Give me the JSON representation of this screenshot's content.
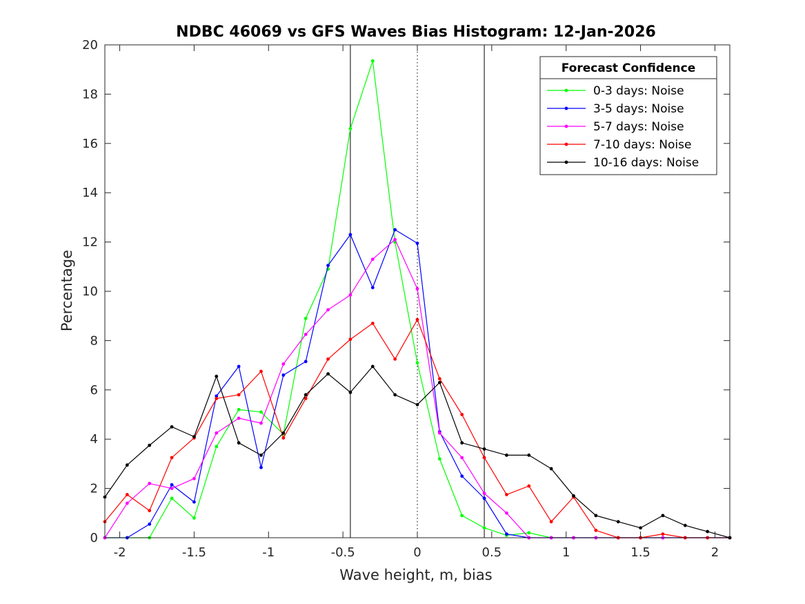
{
  "chart_data": {
    "type": "line",
    "title": "NDBC 46069 vs GFS Waves Bias Histogram: 12-Jan-2026",
    "xlabel": "Wave height, m, bias",
    "ylabel": "Percentage",
    "xlim": [
      -2.1,
      2.1
    ],
    "ylim": [
      0,
      20
    ],
    "xticks": [
      -2,
      -1.5,
      -1,
      -0.5,
      0,
      0.5,
      1,
      1.5,
      2
    ],
    "xtick_labels": [
      "-2",
      "-1.5",
      "-1",
      "-0.5",
      "0",
      "0.5",
      "1",
      "1.5",
      "2"
    ],
    "yticks": [
      0,
      2,
      4,
      6,
      8,
      10,
      12,
      14,
      16,
      18,
      20
    ],
    "ytick_labels": [
      "0",
      "2",
      "4",
      "6",
      "8",
      "10",
      "12",
      "14",
      "16",
      "18",
      "20"
    ],
    "grid": false,
    "vertical_lines": [
      {
        "x": -0.45,
        "style": "solid",
        "color": "#000000"
      },
      {
        "x": 0,
        "style": "dotted",
        "color": "#000000"
      },
      {
        "x": 0.45,
        "style": "solid",
        "color": "#000000"
      }
    ],
    "legend": {
      "title": "Forecast Confidence",
      "position": "top-right"
    },
    "x": [
      -2.1,
      -1.95,
      -1.8,
      -1.65,
      -1.5,
      -1.35,
      -1.2,
      -1.05,
      -0.9,
      -0.75,
      -0.6,
      -0.45,
      -0.3,
      -0.15,
      0,
      0.15,
      0.3,
      0.45,
      0.6,
      0.75,
      0.9,
      1.05,
      1.2,
      1.35,
      1.5,
      1.65,
      1.8,
      1.95,
      2.1
    ],
    "series": [
      {
        "name": "0-3 days: Noise",
        "color": "#00ff00",
        "values": [
          0,
          0,
          0,
          1.6,
          0.8,
          3.7,
          5.2,
          5.1,
          4.2,
          8.9,
          10.9,
          16.6,
          19.35,
          12.0,
          7.1,
          3.2,
          0.9,
          0.4,
          0.1,
          0.2,
          0,
          0,
          0,
          0,
          0,
          0,
          0,
          0,
          0
        ]
      },
      {
        "name": "3-5 days: Noise",
        "color": "#0000ff",
        "values": [
          0,
          0,
          0.55,
          2.15,
          1.45,
          5.75,
          6.95,
          2.85,
          6.6,
          7.15,
          11.05,
          12.3,
          10.15,
          12.5,
          11.95,
          4.3,
          2.5,
          1.6,
          0.15,
          0,
          0,
          0,
          0,
          0,
          0,
          0,
          0,
          0,
          0
        ]
      },
      {
        "name": "5-7 days: Noise",
        "color": "#ff00ff",
        "values": [
          0,
          1.4,
          2.2,
          2.0,
          2.4,
          4.25,
          4.85,
          4.65,
          7.05,
          8.25,
          9.25,
          9.85,
          11.3,
          12.1,
          10.1,
          4.25,
          3.25,
          1.8,
          1.0,
          0,
          0,
          0,
          0,
          0,
          0,
          0,
          0,
          0,
          0
        ]
      },
      {
        "name": "7-10 days: Noise",
        "color": "#ff0000",
        "values": [
          0.65,
          1.75,
          1.1,
          3.25,
          4.05,
          5.65,
          5.8,
          6.75,
          4.05,
          5.65,
          7.25,
          8.05,
          8.7,
          7.25,
          8.85,
          6.45,
          5.0,
          3.25,
          1.75,
          2.1,
          0.65,
          1.65,
          0.3,
          0,
          0,
          0.15,
          0,
          0,
          0
        ]
      },
      {
        "name": "10-16 days: Noise",
        "color": "#000000",
        "values": [
          1.65,
          2.95,
          3.75,
          4.5,
          4.1,
          6.55,
          3.85,
          3.35,
          4.25,
          5.8,
          6.65,
          5.9,
          6.95,
          5.8,
          5.4,
          6.3,
          3.85,
          3.6,
          3.35,
          3.35,
          2.8,
          1.7,
          0.9,
          0.65,
          0.4,
          0.9,
          0.5,
          0.25,
          0
        ]
      }
    ]
  }
}
